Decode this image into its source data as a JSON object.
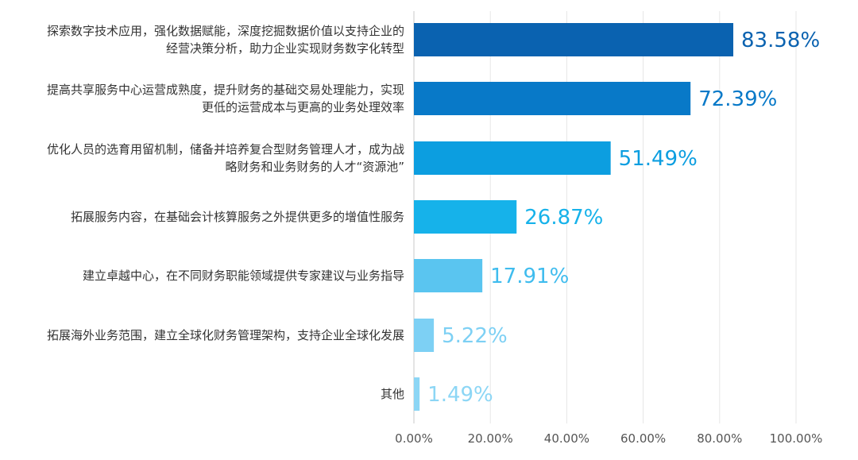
{
  "chart_data": {
    "type": "bar",
    "orientation": "horizontal",
    "categories": [
      [
        "探索数字技术应用，强化数据赋能，深度挖掘数据价值以支持企业的",
        "经营决策分析，助力企业实现财务数字化转型"
      ],
      [
        "提高共享服务中心运营成熟度，提升财务的基础交易处理能力，实现",
        "更低的运营成本与更高的业务处理效率"
      ],
      [
        "优化人员的选育用留机制，储备并培养复合型财务管理人才，成为战",
        "略财务和业务财务的人才“资源池”"
      ],
      [
        "拓展服务内容，在基础会计核算服务之外提供更多的增值性服务"
      ],
      [
        "建立卓越中心，在不同财务职能领域提供专家建议与业务指导"
      ],
      [
        "拓展海外业务范围，建立全球化财务管理架构，支持企业全球化发展"
      ],
      [
        "其他"
      ]
    ],
    "values": [
      83.58,
      72.39,
      51.49,
      26.87,
      17.91,
      5.22,
      1.49
    ],
    "data_labels": [
      "83.58%",
      "72.39%",
      "51.49%",
      "26.87%",
      "17.91%",
      "5.22%",
      "1.49%"
    ],
    "bar_colors": [
      "#0a62b0",
      "#0879c8",
      "#0c9ee0",
      "#16b2ea",
      "#5ac5f0",
      "#7dd0f4",
      "#8cd6f5"
    ],
    "label_colors": [
      "#0a62b0",
      "#0879c8",
      "#0c9ee0",
      "#16b2ea",
      "#3fbcee",
      "#7dd0f4",
      "#8cd6f5"
    ],
    "xlim": [
      0,
      100
    ],
    "xticks": [
      0,
      20,
      40,
      60,
      80,
      100
    ],
    "xtick_labels": [
      "0.00%",
      "20.00%",
      "40.00%",
      "60.00%",
      "80.00%",
      "100.00%"
    ],
    "grid": "vertical",
    "title": "",
    "xlabel": "",
    "ylabel": ""
  }
}
